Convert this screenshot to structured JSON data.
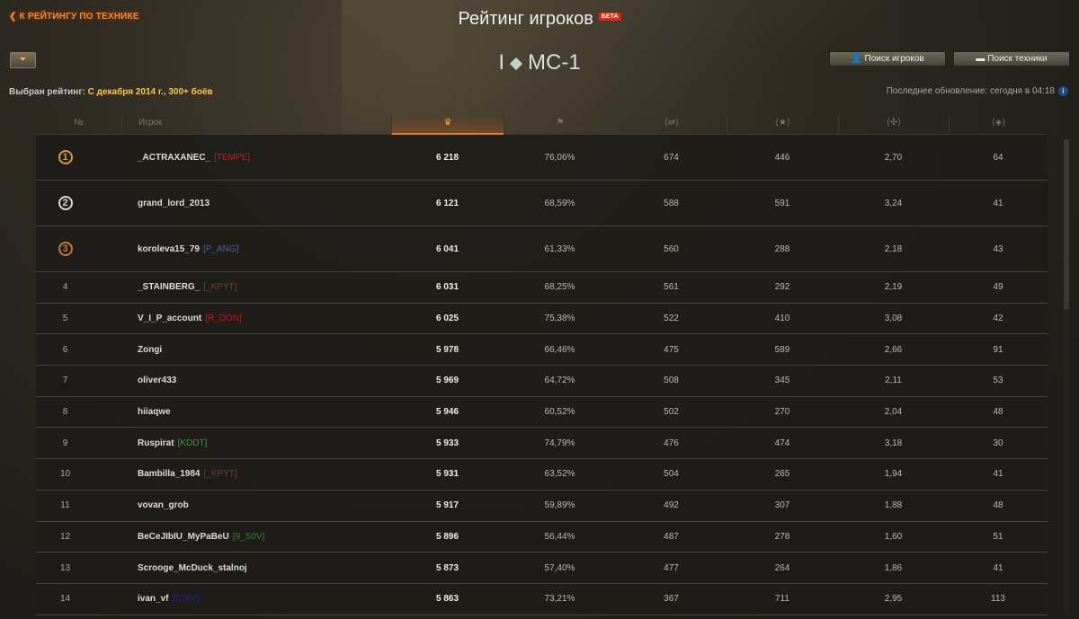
{
  "header": {
    "back_link": "К РЕЙТИНГУ ПО ТЕХНИКЕ",
    "title": "Рейтинг игроков",
    "beta_badge": "БЕТА",
    "tank_tier": "I",
    "tank_name": "МС-1",
    "selected_label": "Выбран рейтинг:",
    "selected_value": "С декабря 2014 г., 300+ боёв",
    "search_players": "Поиск игроков",
    "search_vehicles": "Поиск техники",
    "last_update": "Последнее обновление: сегодня в 04:18"
  },
  "columns": [
    {
      "label": "№"
    },
    {
      "label": "Игрок"
    },
    {
      "icon": "rating-icon",
      "active": true
    },
    {
      "icon": "flag-icon"
    },
    {
      "icon": "damage-icon"
    },
    {
      "icon": "star-icon"
    },
    {
      "icon": "kills-icon"
    },
    {
      "icon": "spot-icon"
    }
  ],
  "colors": {
    "accent": "#e57a2c",
    "gold": "#d99a3a",
    "silver": "#d8d8d8",
    "bronze": "#c07a3a"
  },
  "rows": [
    {
      "rank": "1",
      "name": "_ACTRAXANEC_",
      "clan": "[TEMPE]",
      "clan_color": "#c02020",
      "v": [
        "6 218",
        "76,06%",
        "674",
        "446",
        "2,70",
        "64"
      ]
    },
    {
      "rank": "2",
      "name": "grand_lord_2013",
      "clan": "",
      "clan_color": "",
      "v": [
        "6 121",
        "68,59%",
        "588",
        "591",
        "3,24",
        "41"
      ]
    },
    {
      "rank": "3",
      "name": "koroleva15_79",
      "clan": "[P_ANG]",
      "clan_color": "#4060b0",
      "v": [
        "6 041",
        "61,33%",
        "560",
        "288",
        "2,18",
        "43"
      ]
    },
    {
      "rank": "4",
      "name": "_STAINBERG_",
      "clan": "[_KPYT]",
      "clan_color": "#7a3a36",
      "v": [
        "6 031",
        "68,25%",
        "561",
        "292",
        "2,19",
        "49"
      ]
    },
    {
      "rank": "5",
      "name": "V_I_P_account",
      "clan": "[R_DON]",
      "clan_color": "#c01818",
      "v": [
        "6 025",
        "75,38%",
        "522",
        "410",
        "3,08",
        "42"
      ]
    },
    {
      "rank": "6",
      "name": "Zongi",
      "clan": "",
      "clan_color": "",
      "v": [
        "5 978",
        "66,46%",
        "475",
        "589",
        "2,66",
        "91"
      ]
    },
    {
      "rank": "7",
      "name": "oliver433",
      "clan": "",
      "clan_color": "",
      "v": [
        "5 969",
        "64,72%",
        "508",
        "345",
        "2,11",
        "53"
      ]
    },
    {
      "rank": "8",
      "name": "hiiaqwe",
      "clan": "",
      "clan_color": "",
      "v": [
        "5 946",
        "60,52%",
        "502",
        "270",
        "2,04",
        "48"
      ]
    },
    {
      "rank": "9",
      "name": "Ruspirat",
      "clan": "[KDDT]",
      "clan_color": "#3a9a3a",
      "v": [
        "5 933",
        "74,79%",
        "476",
        "474",
        "3,18",
        "30"
      ]
    },
    {
      "rank": "10",
      "name": "Bambilla_1984",
      "clan": "[_KPYT]",
      "clan_color": "#7a3a36",
      "v": [
        "5 931",
        "63,52%",
        "504",
        "265",
        "1,94",
        "41"
      ]
    },
    {
      "rank": "11",
      "name": "vovan_grob",
      "clan": "",
      "clan_color": "",
      "v": [
        "5 917",
        "59,89%",
        "492",
        "307",
        "1,88",
        "48"
      ]
    },
    {
      "rank": "12",
      "name": "BeCeJIbIU_MyPaBeU",
      "clan": "[9_S0V]",
      "clan_color": "#2a8a2a",
      "v": [
        "5 896",
        "56,44%",
        "487",
        "278",
        "1,60",
        "51"
      ]
    },
    {
      "rank": "13",
      "name": "Scrooge_McDuck_stalnoj",
      "clan": "",
      "clan_color": "",
      "v": [
        "5 873",
        "57,40%",
        "477",
        "264",
        "1,86",
        "41"
      ]
    },
    {
      "rank": "14",
      "name": "ivan_vf",
      "clan": "[STAY]",
      "clan_color": "#22227a",
      "v": [
        "5 863",
        "73,21%",
        "367",
        "711",
        "2,95",
        "113"
      ]
    }
  ]
}
